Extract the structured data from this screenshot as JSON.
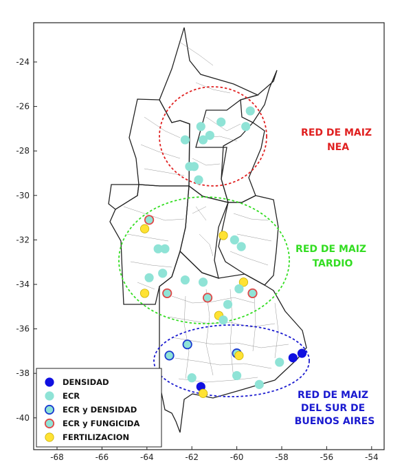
{
  "axes": {
    "x_ticks": [
      "-68",
      "-66",
      "-64",
      "-62",
      "-60",
      "-58",
      "-56",
      "-54"
    ],
    "y_ticks": [
      "-24",
      "-26",
      "-28",
      "-30",
      "-32",
      "-34",
      "-36",
      "-38",
      "-40"
    ]
  },
  "regions": [
    {
      "id": "nea",
      "lines": [
        "RED DE MAIZ",
        "NEA"
      ],
      "color": "#e02020"
    },
    {
      "id": "tardio",
      "lines": [
        "RED DE MAIZ",
        "TARDIO"
      ],
      "color": "#33dd22"
    },
    {
      "id": "sur",
      "lines": [
        "RED DE MAIZ",
        "DEL SUR DE",
        "BUENOS AIRES"
      ],
      "color": "#1a1ad0"
    }
  ],
  "legend": [
    {
      "key": "densidad",
      "label": "DENSIDAD",
      "fill": "#1010e0",
      "stroke": "#1010e0"
    },
    {
      "key": "ecr",
      "label": "ECR",
      "fill": "#8fe3d6",
      "stroke": "#8fe3d6"
    },
    {
      "key": "ecr_densidad",
      "label": "ECR y DENSIDAD",
      "fill": "#8fe3d6",
      "stroke": "#1a3ad0"
    },
    {
      "key": "ecr_fungicida",
      "label": "ECR y FUNGICIDA",
      "fill": "#8fe3d6",
      "stroke": "#e04848"
    },
    {
      "key": "fertilizacion",
      "label": "FERTILIZACION",
      "fill": "#ffe233",
      "stroke": "#c9b000"
    }
  ],
  "sites": [
    {
      "type": "ecr",
      "lon": -59.4,
      "lat": -26.2
    },
    {
      "type": "ecr",
      "lon": -60.7,
      "lat": -26.7
    },
    {
      "type": "ecr",
      "lon": -61.6,
      "lat": -26.9
    },
    {
      "type": "ecr",
      "lon": -59.6,
      "lat": -26.9
    },
    {
      "type": "ecr",
      "lon": -61.2,
      "lat": -27.3
    },
    {
      "type": "ecr",
      "lon": -61.5,
      "lat": -27.5
    },
    {
      "type": "ecr",
      "lon": -62.3,
      "lat": -27.5
    },
    {
      "type": "ecr",
      "lon": -62.1,
      "lat": -28.7
    },
    {
      "type": "ecr",
      "lon": -61.9,
      "lat": -28.7
    },
    {
      "type": "ecr",
      "lon": -61.7,
      "lat": -29.3
    },
    {
      "type": "ecr_fungicida",
      "lon": -63.9,
      "lat": -31.1
    },
    {
      "type": "fertilizacion",
      "lon": -64.1,
      "lat": -31.5
    },
    {
      "type": "fertilizacion",
      "lon": -60.6,
      "lat": -31.8
    },
    {
      "type": "ecr",
      "lon": -60.1,
      "lat": -32.0
    },
    {
      "type": "ecr",
      "lon": -59.8,
      "lat": -32.3
    },
    {
      "type": "ecr",
      "lon": -63.5,
      "lat": -32.4
    },
    {
      "type": "ecr",
      "lon": -63.2,
      "lat": -32.4
    },
    {
      "type": "ecr",
      "lon": -63.3,
      "lat": -33.5
    },
    {
      "type": "ecr",
      "lon": -63.9,
      "lat": -33.7
    },
    {
      "type": "ecr",
      "lon": -62.3,
      "lat": -33.8
    },
    {
      "type": "ecr",
      "lon": -61.5,
      "lat": -33.9
    },
    {
      "type": "fertilizacion",
      "lon": -59.7,
      "lat": -33.9
    },
    {
      "type": "ecr",
      "lon": -59.9,
      "lat": -34.2
    },
    {
      "type": "fertilizacion",
      "lon": -64.1,
      "lat": -34.4
    },
    {
      "type": "ecr_fungicida",
      "lon": -63.1,
      "lat": -34.4
    },
    {
      "type": "ecr_fungicida",
      "lon": -59.3,
      "lat": -34.4
    },
    {
      "type": "ecr_fungicida",
      "lon": -61.3,
      "lat": -34.6
    },
    {
      "type": "ecr",
      "lon": -60.4,
      "lat": -34.9
    },
    {
      "type": "fertilizacion",
      "lon": -60.8,
      "lat": -35.4
    },
    {
      "type": "ecr",
      "lon": -60.6,
      "lat": -35.6
    },
    {
      "type": "ecr_densidad",
      "lon": -62.2,
      "lat": -36.7
    },
    {
      "type": "ecr_densidad",
      "lon": -63.0,
      "lat": -37.2
    },
    {
      "type": "ecr_densidad",
      "lon": -60.0,
      "lat": -37.1
    },
    {
      "type": "fertilizacion",
      "lon": -59.9,
      "lat": -37.2
    },
    {
      "type": "densidad",
      "lon": -57.1,
      "lat": -37.1
    },
    {
      "type": "densidad",
      "lon": -57.5,
      "lat": -37.3
    },
    {
      "type": "ecr",
      "lon": -58.1,
      "lat": -37.5
    },
    {
      "type": "ecr",
      "lon": -60.0,
      "lat": -38.1
    },
    {
      "type": "ecr",
      "lon": -62.0,
      "lat": -38.2
    },
    {
      "type": "ecr",
      "lon": -59.0,
      "lat": -38.5
    },
    {
      "type": "densidad",
      "lon": -61.6,
      "lat": -38.6
    },
    {
      "type": "fertilizacion",
      "lon": -61.5,
      "lat": -38.9
    }
  ]
}
